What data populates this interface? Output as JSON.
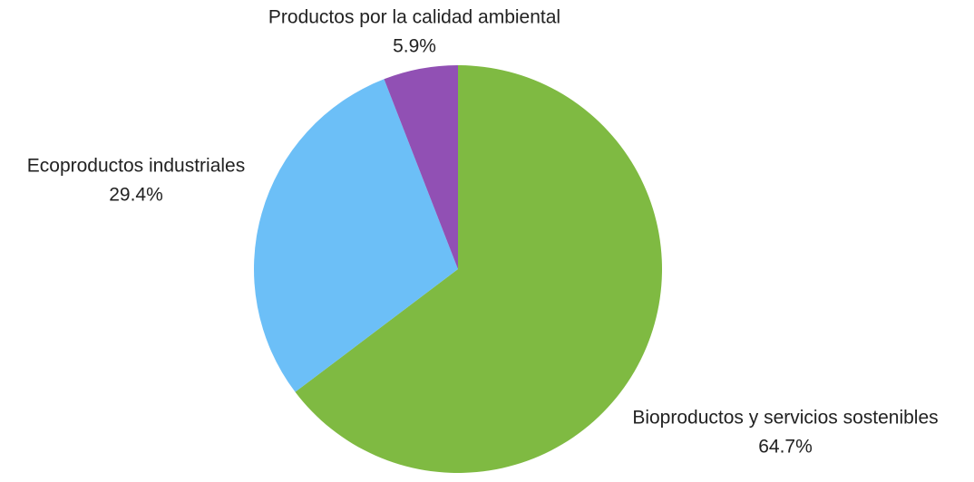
{
  "chart_data": {
    "type": "pie",
    "categories": [
      "Bioproductos y servicios sostenibles",
      "Ecoproductos industriales",
      "Productos por la calidad ambiental"
    ],
    "values": [
      64.7,
      29.4,
      5.9
    ],
    "value_labels": [
      "64.7%",
      "29.4%",
      "5.9%"
    ],
    "colors": [
      "#7fba42",
      "#6cbff7",
      "#9150b4"
    ]
  }
}
